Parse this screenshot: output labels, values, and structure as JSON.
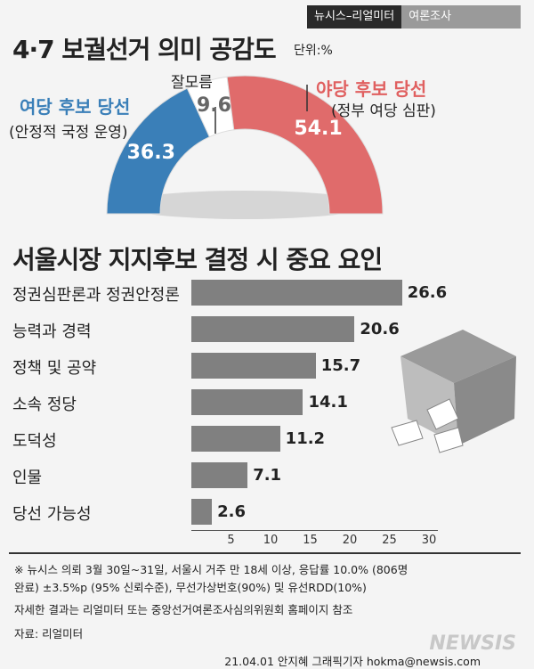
{
  "badge": {
    "left": "뉴시스–리얼미터",
    "right": "여론조사"
  },
  "title1": "4·7 보궐선거 의미 공감도",
  "unit": "단위:%",
  "title2": "서울시장 지지후보 결정 시 중요 요인",
  "gauge_labels": {
    "ruling": "여당 후보 당선",
    "ruling_sub": "(안정적 국정 운영)",
    "unsure": "잘모름",
    "opposition": "야당 후보 당선",
    "opposition_sub": "(정부 여당 심판)"
  },
  "chart_data": [
    {
      "type": "pie",
      "categories": [
        "여당 후보 당선",
        "잘모름",
        "야당 후보 당선"
      ],
      "values": [
        36.3,
        9.6,
        54.1
      ],
      "colors": [
        "#3a7fb8",
        "#ffffff",
        "#e06b6b"
      ],
      "title": "4·7 보궐선거 의미 공감도"
    },
    {
      "type": "bar",
      "orientation": "horizontal",
      "categories": [
        "정권심판론과 정권안정론",
        "능력과 경력",
        "정책 및 공약",
        "소속 정당",
        "도덕성",
        "인물",
        "당선 가능성"
      ],
      "values": [
        26.6,
        20.6,
        15.7,
        14.1,
        11.2,
        7.1,
        2.6
      ],
      "ticks": [
        5,
        10,
        15,
        20,
        25,
        30
      ],
      "xlim": [
        0,
        30
      ],
      "title": "서울시장 지지후보 결정 시 중요 요인"
    }
  ],
  "footnote": {
    "line1": "※ 뉴시스 의뢰 3월 30일~31일, 서울시 거주 만 18세 이상, 응답률 10.0% (806명",
    "line2": "완료) ±3.5%p (95% 신뢰수준), 무선가상번호(90%) 및 유선RDD(10%)",
    "line3": "자세한 결과는 리얼미터 또는 중앙선거여론조사심의위원회 홈페이지 참조",
    "source": "자료: 리얼미터"
  },
  "credit": "21.04.01 안지혜 그래픽기자 hokma@newsis.com",
  "watermark": "NEWSIS"
}
